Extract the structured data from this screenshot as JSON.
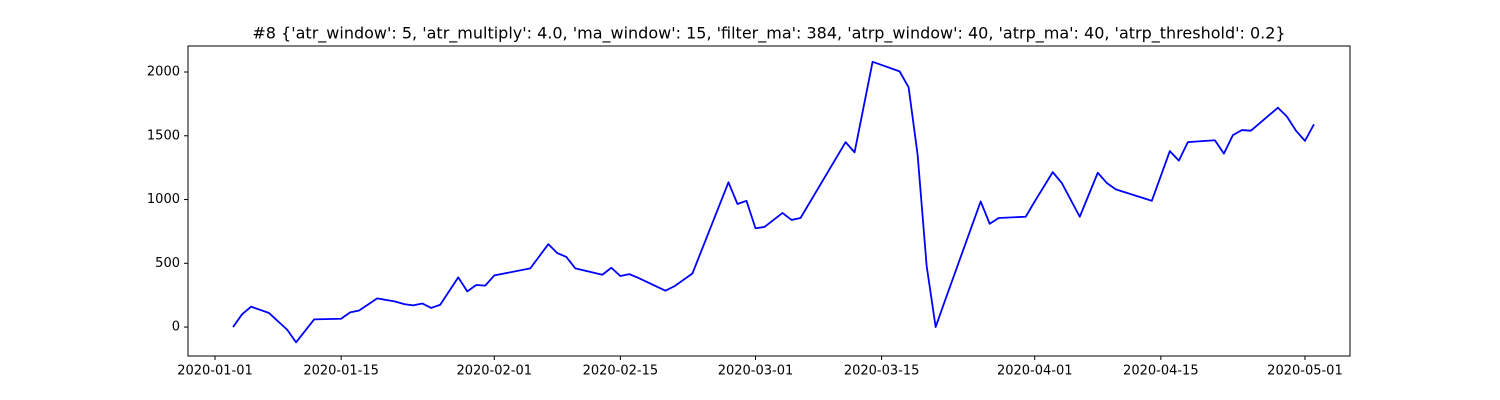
{
  "chart_data": {
    "type": "line",
    "title": "#8 {'atr_window': 5, 'atr_multiply': 4.0, 'ma_window': 15, 'filter_ma': 384, 'atrp_window': 40, 'atrp_ma': 40, 'atrp_threshold': 0.2}",
    "x": [
      "2020-01-03",
      "2020-01-04",
      "2020-01-05",
      "2020-01-07",
      "2020-01-09",
      "2020-01-10",
      "2020-01-12",
      "2020-01-15",
      "2020-01-16",
      "2020-01-17",
      "2020-01-19",
      "2020-01-21",
      "2020-01-22",
      "2020-01-23",
      "2020-01-24",
      "2020-01-25",
      "2020-01-26",
      "2020-01-28",
      "2020-01-29",
      "2020-01-30",
      "2020-01-31",
      "2020-02-01",
      "2020-02-05",
      "2020-02-07",
      "2020-02-08",
      "2020-02-09",
      "2020-02-10",
      "2020-02-13",
      "2020-02-14",
      "2020-02-15",
      "2020-02-16",
      "2020-02-17",
      "2020-02-20",
      "2020-02-21",
      "2020-02-23",
      "2020-02-27",
      "2020-02-28",
      "2020-02-29",
      "2020-03-01",
      "2020-03-02",
      "2020-03-04",
      "2020-03-05",
      "2020-03-06",
      "2020-03-11",
      "2020-03-12",
      "2020-03-14",
      "2020-03-17",
      "2020-03-18",
      "2020-03-19",
      "2020-03-20",
      "2020-03-21",
      "2020-03-22",
      "2020-03-26",
      "2020-03-27",
      "2020-03-28",
      "2020-03-31",
      "2020-04-01",
      "2020-04-03",
      "2020-04-04",
      "2020-04-06",
      "2020-04-08",
      "2020-04-09",
      "2020-04-10",
      "2020-04-14",
      "2020-04-16",
      "2020-04-17",
      "2020-04-18",
      "2020-04-21",
      "2020-04-22",
      "2020-04-23",
      "2020-04-24",
      "2020-04-25",
      "2020-04-28",
      "2020-04-29",
      "2020-04-30",
      "2020-05-01",
      "2020-05-02"
    ],
    "series": [
      {
        "color": "#0000ff",
        "values": [
          0,
          100,
          160,
          110,
          -20,
          -120,
          60,
          65,
          115,
          130,
          225,
          200,
          180,
          170,
          185,
          150,
          175,
          390,
          280,
          330,
          325,
          405,
          460,
          650,
          580,
          550,
          460,
          410,
          465,
          400,
          415,
          385,
          285,
          320,
          420,
          1135,
          965,
          990,
          775,
          785,
          895,
          840,
          855,
          1450,
          1370,
          2080,
          2005,
          1880,
          1350,
          480,
          0,
          200,
          985,
          810,
          855,
          865,
          985,
          1215,
          1130,
          865,
          1210,
          1130,
          1080,
          990,
          1380,
          1305,
          1450,
          1465,
          1360,
          1505,
          1545,
          1540,
          1720,
          1650,
          1540,
          1460,
          1590
        ]
      }
    ],
    "xlim": [
      "2019-12-29",
      "2020-05-06"
    ],
    "xticks": [
      "2020-01-01",
      "2020-01-15",
      "2020-02-01",
      "2020-02-15",
      "2020-03-01",
      "2020-03-15",
      "2020-04-01",
      "2020-04-15",
      "2020-05-01"
    ],
    "ylim": [
      -227,
      2204
    ],
    "yticks": [
      0,
      500,
      1000,
      1500,
      2000
    ]
  }
}
